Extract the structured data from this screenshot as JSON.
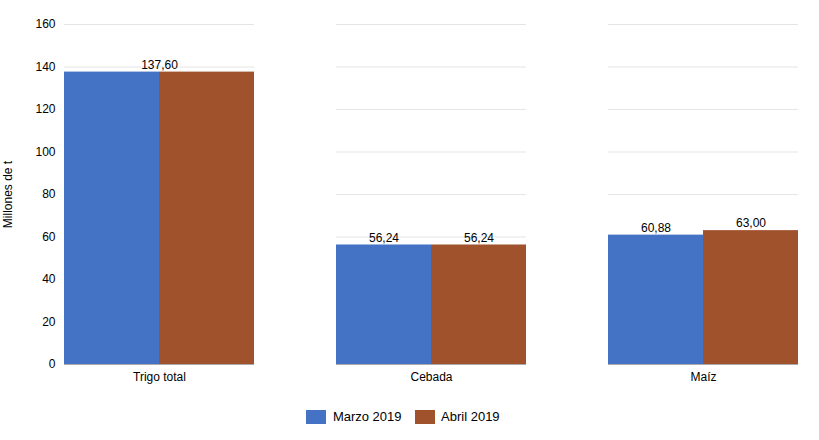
{
  "chart_data": {
    "type": "bar",
    "categories": [
      "Trigo total",
      "Cebada",
      "Maíz"
    ],
    "series": [
      {
        "name": "Marzo 2019",
        "color": "#4472c4",
        "values": [
          137.6,
          56.24,
          60.88
        ],
        "value_labels": [
          "137,60",
          "56,24",
          "60,88"
        ]
      },
      {
        "name": "Abril 2019",
        "color": "#a0522d",
        "values": [
          137.6,
          56.24,
          63.0
        ],
        "value_labels": [
          null,
          "56,24",
          "63,00"
        ]
      }
    ],
    "ylabel": "Millones de t",
    "ylim": [
      0,
      160
    ],
    "yticks": [
      0,
      20,
      40,
      60,
      80,
      100,
      120,
      140,
      160
    ],
    "grid": true,
    "legend": "bottom",
    "data_labels": true
  }
}
